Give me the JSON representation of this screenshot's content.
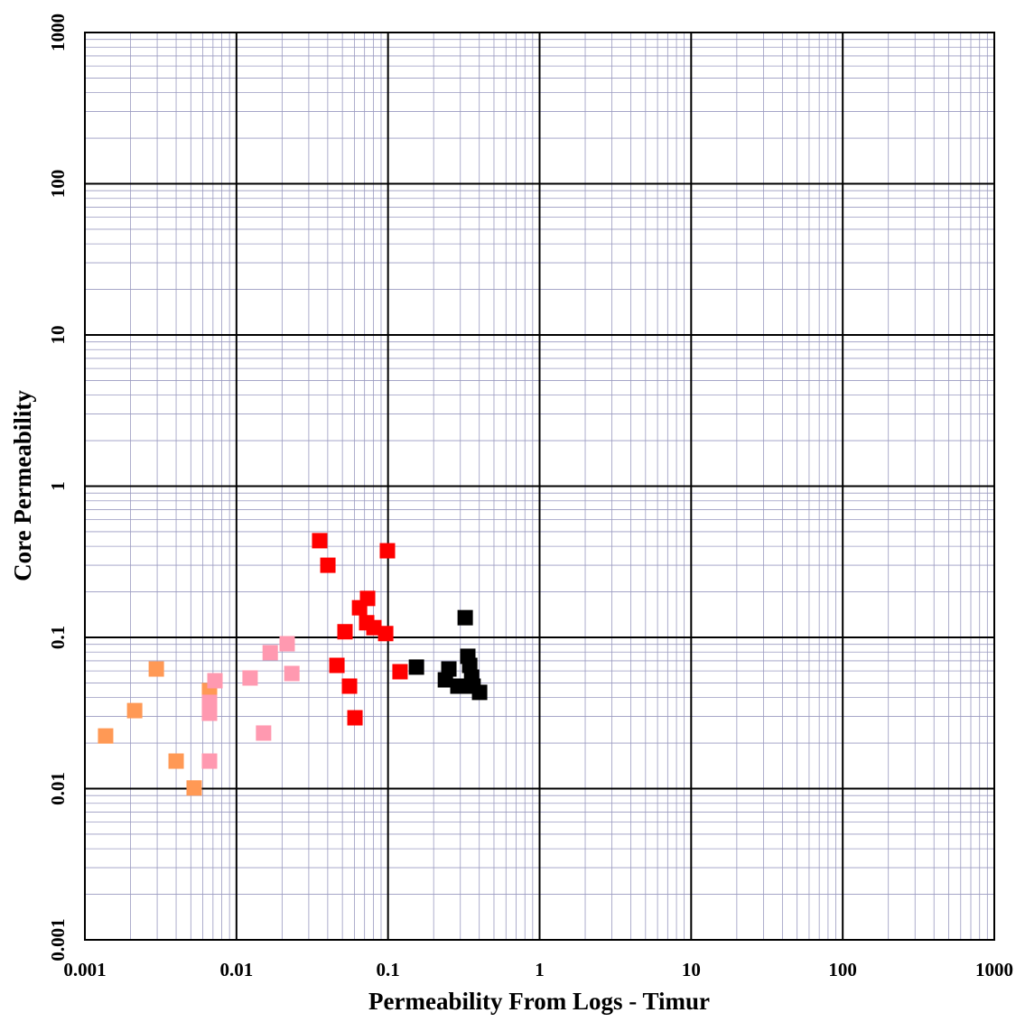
{
  "chart_data": {
    "type": "scatter",
    "log_x": true,
    "log_y": true,
    "grid": true,
    "minor_grid": true,
    "x_label": "Permeability From Logs  -   Timur",
    "y_label": "Core Permeability",
    "xlim": [
      0.001,
      1000
    ],
    "ylim": [
      0.001,
      1000
    ],
    "xticks": [
      0.001,
      0.01,
      0.1,
      1,
      10,
      100,
      1000
    ],
    "yticks": [
      0.001,
      0.01,
      0.1,
      1,
      10,
      100,
      1000
    ],
    "series": [
      {
        "color": "#ff9955",
        "x": [
          0.00137,
          0.00213,
          0.00296,
          0.004,
          0.00526,
          0.00664
        ],
        "values": [
          0.0223,
          0.0328,
          0.0618,
          0.0152,
          0.0101,
          0.0445
        ]
      },
      {
        "color": "#ff99b0",
        "x": [
          0.00721,
          0.00664,
          0.00664,
          0.00664,
          0.0123,
          0.0167,
          0.0216,
          0.0232,
          0.0151
        ],
        "values": [
          0.0517,
          0.0315,
          0.0372,
          0.0152,
          0.0539,
          0.0792,
          0.0908,
          0.0577,
          0.0233
        ]
      },
      {
        "color": "#ff0000",
        "x": [
          0.0354,
          0.0401,
          0.0991,
          0.0733,
          0.0649,
          0.0723,
          0.0807,
          0.0965,
          0.052,
          0.046,
          0.0557,
          0.0605,
          0.12
        ],
        "values": [
          0.436,
          0.3,
          0.374,
          0.181,
          0.157,
          0.125,
          0.116,
          0.106,
          0.109,
          0.0653,
          0.0476,
          0.0294,
          0.0593
        ]
      },
      {
        "color": "#000000",
        "x": [
          0.323,
          0.154,
          0.252,
          0.239,
          0.289,
          0.336,
          0.346,
          0.356,
          0.364,
          0.402
        ],
        "values": [
          0.135,
          0.0636,
          0.0618,
          0.0524,
          0.0476,
          0.075,
          0.0653,
          0.0546,
          0.0476,
          0.0433
        ]
      }
    ]
  }
}
